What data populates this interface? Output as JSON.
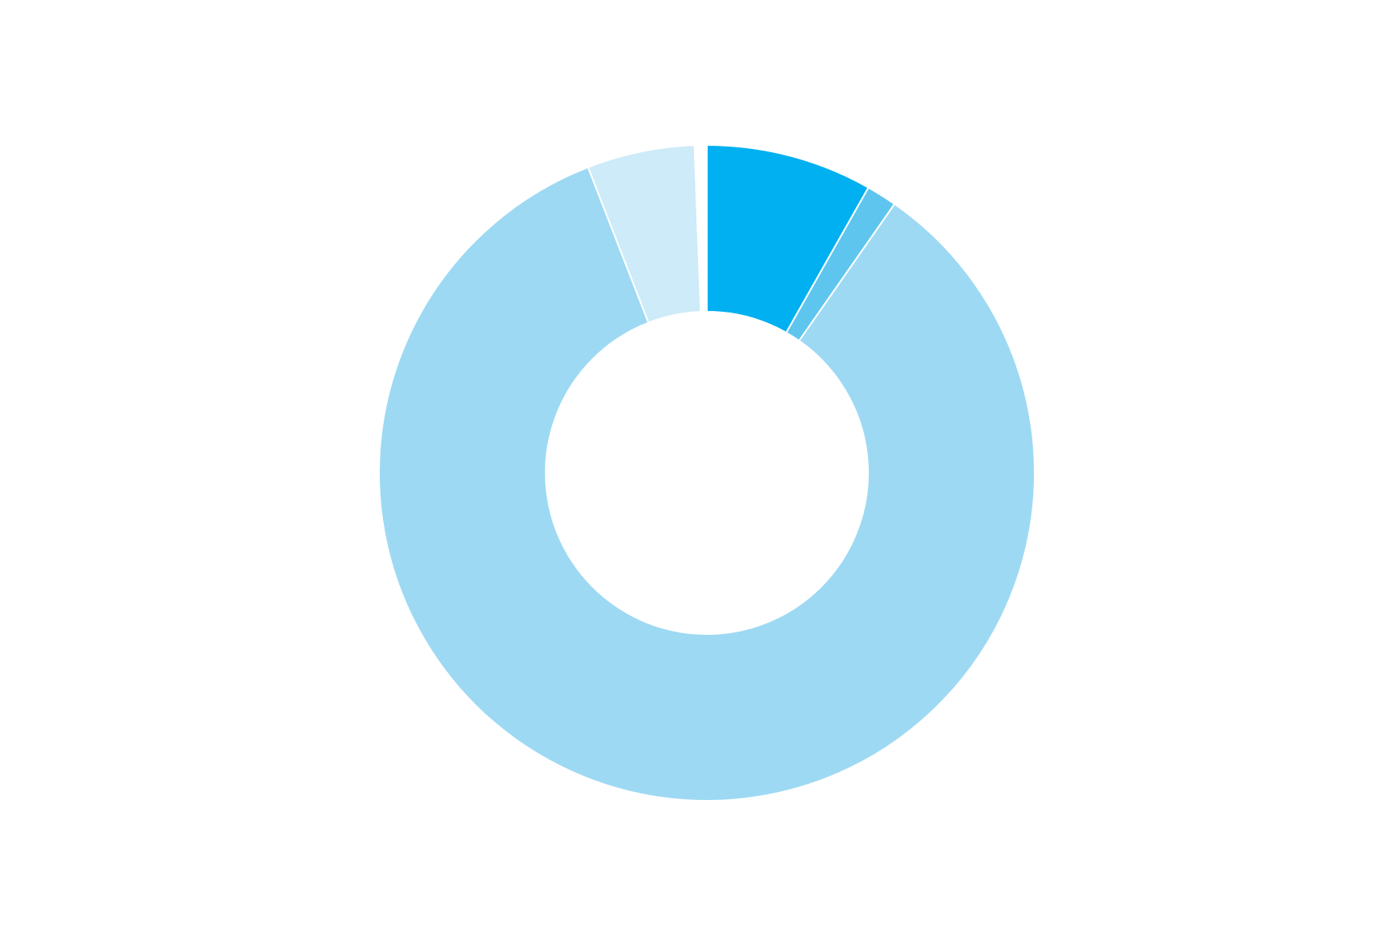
{
  "chart_data": {
    "type": "donut",
    "categories": [
      null,
      null,
      null,
      null,
      null
    ],
    "values": [
      8.2,
      1.5,
      84.4,
      5.3,
      0.6
    ],
    "colors": [
      "#00b0f0",
      "#5ec5ee",
      "#9dd9f3",
      "#cdebf8",
      "#ffffff"
    ]
  }
}
